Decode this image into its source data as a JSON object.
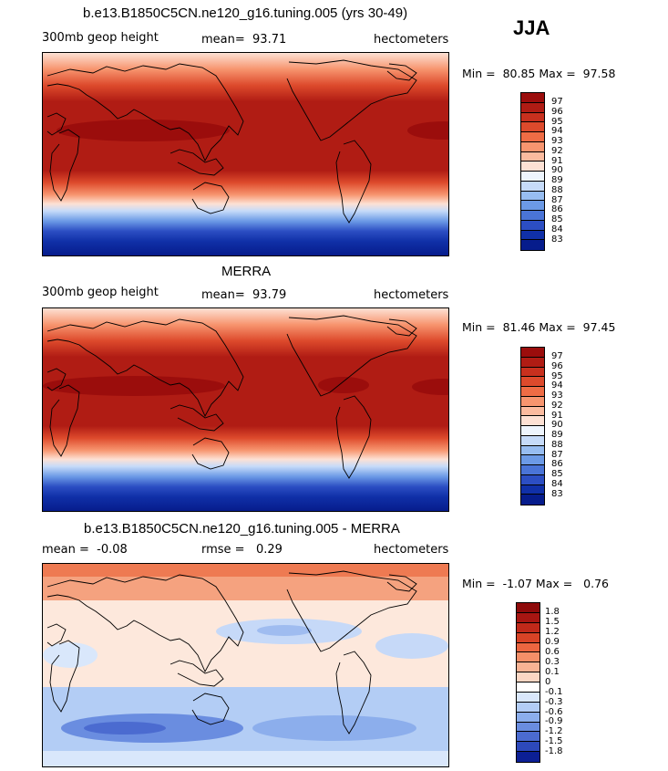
{
  "season": "JJA",
  "panels": [
    {
      "title": "b.e13.B1850C5CN.ne120_g16.tuning.005 (yrs 30-49)",
      "left_label": "300mb geop height",
      "stat_label": "mean=",
      "stat_value": "93.71",
      "stat2_label": "",
      "stat2_value": "",
      "units": "hectometers",
      "min_label": "Min =",
      "min_value": "80.85",
      "max_label": "Max =",
      "max_value": "97.58",
      "levels": [
        "97",
        "96",
        "95",
        "94",
        "93",
        "92",
        "91",
        "90",
        "89",
        "88",
        "87",
        "86",
        "85",
        "84",
        "83"
      ],
      "colors": [
        "#9b0d0c",
        "#b01c14",
        "#c8301e",
        "#dd4a2c",
        "#ef6c45",
        "#f7956f",
        "#fbbb9f",
        "#fde1d4",
        "#eef5fd",
        "#c6dbf9",
        "#97bdf1",
        "#6c9ae6",
        "#4a74d7",
        "#2c4ec3",
        "#1030a8",
        "#061c8c"
      ]
    },
    {
      "title": "MERRA",
      "left_label": "300mb geop height",
      "stat_label": "mean=",
      "stat_value": "93.79",
      "stat2_label": "",
      "stat2_value": "",
      "units": "hectometers",
      "min_label": "Min =",
      "min_value": "81.46",
      "max_label": "Max =",
      "max_value": "97.45",
      "levels": [
        "97",
        "96",
        "95",
        "94",
        "93",
        "92",
        "91",
        "90",
        "89",
        "88",
        "87",
        "86",
        "85",
        "84",
        "83"
      ],
      "colors": [
        "#9b0d0c",
        "#b01c14",
        "#c8301e",
        "#dd4a2c",
        "#ef6c45",
        "#f7956f",
        "#fbbb9f",
        "#fde1d4",
        "#eef5fd",
        "#c6dbf9",
        "#97bdf1",
        "#6c9ae6",
        "#4a74d7",
        "#2c4ec3",
        "#1030a8",
        "#061c8c"
      ]
    },
    {
      "title": "b.e13.B1850C5CN.ne120_g16.tuning.005 - MERRA",
      "left_label": "mean =",
      "left_value": "-0.08",
      "stat_label": "rmse =",
      "stat_value": "0.29",
      "units": "hectometers",
      "min_label": "Min =",
      "min_value": "-1.07",
      "max_label": "Max =",
      "max_value": "0.76",
      "levels": [
        "1.8",
        "1.5",
        "1.2",
        "0.9",
        "0.6",
        "0.3",
        "0.1",
        "0",
        "-0.1",
        "-0.3",
        "-0.6",
        "-0.9",
        "-1.2",
        "-1.5",
        "-1.8"
      ],
      "colors": [
        "#8e0a0a",
        "#a81612",
        "#c0291a",
        "#d84326",
        "#ec6640",
        "#f58f68",
        "#f9b394",
        "#fcd7c4",
        "#ffffff",
        "#d9e7fb",
        "#b3cdf5",
        "#8caeec",
        "#6a8de0",
        "#4b6bd0",
        "#2d49bb",
        "#0c1f94"
      ]
    }
  ]
}
